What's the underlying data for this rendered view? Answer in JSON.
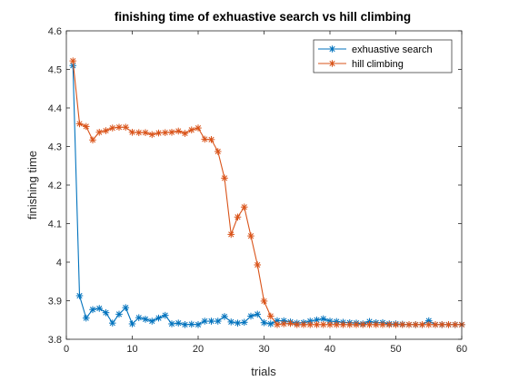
{
  "chart_data": {
    "type": "line",
    "title": "finishing time of exhuastive search vs hill climbing",
    "xlabel": "trials",
    "ylabel": "finishing time",
    "xlim": [
      0,
      60
    ],
    "ylim": [
      3.8,
      4.6
    ],
    "xticks": [
      "0",
      "10",
      "20",
      "30",
      "40",
      "50",
      "60"
    ],
    "yticks": [
      "3.8",
      "3.9",
      "4",
      "4.1",
      "4.2",
      "4.3",
      "4.4",
      "4.5",
      "4.6"
    ],
    "grid": false,
    "legend_position": "top-right",
    "marker": "asterisk",
    "x": [
      1,
      2,
      3,
      4,
      5,
      6,
      7,
      8,
      9,
      10,
      11,
      12,
      13,
      14,
      15,
      16,
      17,
      18,
      19,
      20,
      21,
      22,
      23,
      24,
      25,
      26,
      27,
      28,
      29,
      30,
      31,
      32,
      33,
      34,
      35,
      36,
      37,
      38,
      39,
      40,
      41,
      42,
      43,
      44,
      45,
      46,
      47,
      48,
      49,
      50,
      51,
      52,
      53,
      54,
      55,
      56,
      57,
      58,
      59,
      60
    ],
    "series": [
      {
        "name": "exhuastive search",
        "color": "#0072BD",
        "values": [
          4.51,
          3.913,
          3.855,
          3.877,
          3.88,
          3.869,
          3.842,
          3.865,
          3.882,
          3.84,
          3.856,
          3.852,
          3.847,
          3.855,
          3.862,
          3.84,
          3.842,
          3.838,
          3.839,
          3.838,
          3.847,
          3.847,
          3.847,
          3.859,
          3.845,
          3.842,
          3.844,
          3.86,
          3.865,
          3.843,
          3.84,
          3.848,
          3.848,
          3.845,
          3.842,
          3.843,
          3.847,
          3.85,
          3.853,
          3.847,
          3.846,
          3.844,
          3.843,
          3.842,
          3.84,
          3.846,
          3.843,
          3.843,
          3.84,
          3.84,
          3.839,
          3.838,
          3.838,
          3.838,
          3.848,
          3.838,
          3.838,
          3.838,
          3.838,
          3.838
        ]
      },
      {
        "name": "hill climbing",
        "color": "#D95319",
        "values": [
          4.522,
          4.359,
          4.352,
          4.317,
          4.337,
          4.341,
          4.348,
          4.35,
          4.35,
          4.337,
          4.336,
          4.336,
          4.331,
          4.335,
          4.336,
          4.337,
          4.34,
          4.334,
          4.343,
          4.348,
          4.319,
          4.318,
          4.287,
          4.218,
          4.072,
          4.117,
          4.143,
          4.068,
          3.993,
          3.899,
          3.86,
          3.838,
          3.84,
          3.841,
          3.838,
          3.838,
          3.838,
          3.838,
          3.838,
          3.838,
          3.838,
          3.838,
          3.838,
          3.838,
          3.838,
          3.838,
          3.838,
          3.838,
          3.838,
          3.838,
          3.838,
          3.838,
          3.838,
          3.838,
          3.838,
          3.838,
          3.838,
          3.838,
          3.838,
          3.838
        ]
      }
    ]
  }
}
